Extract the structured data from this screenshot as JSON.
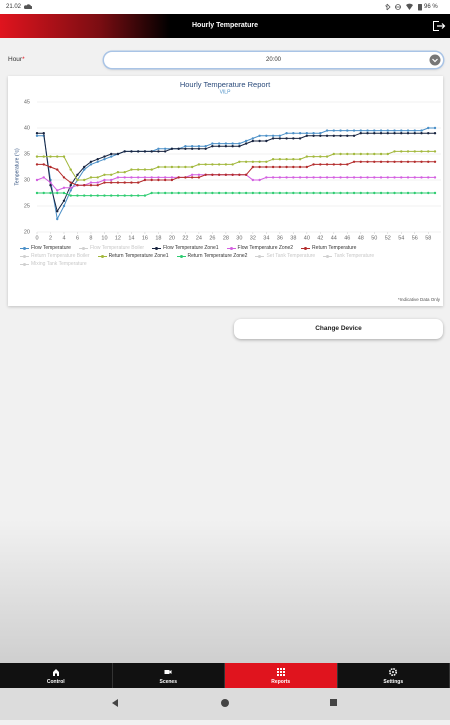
{
  "status_bar": {
    "time": "21.02",
    "battery": "96 %"
  },
  "header": {
    "title": "Hourly Temperature"
  },
  "form": {
    "label": "Hour",
    "required_mark": "*",
    "value": "20:00"
  },
  "chart_data": {
    "type": "line",
    "title": "Hourly Temperature Report",
    "subtitle": "VILP",
    "y_label": "Temperature (°c)",
    "x": [
      0,
      1,
      2,
      3,
      4,
      5,
      6,
      7,
      8,
      9,
      10,
      11,
      12,
      13,
      14,
      15,
      16,
      17,
      18,
      19,
      20,
      21,
      22,
      23,
      24,
      25,
      26,
      27,
      28,
      29,
      30,
      31,
      32,
      33,
      34,
      35,
      36,
      37,
      38,
      39,
      40,
      41,
      42,
      43,
      44,
      45,
      46,
      47,
      48,
      49,
      50,
      51,
      52,
      53,
      54,
      55,
      56,
      57,
      58,
      59
    ],
    "xlim": [
      0,
      59
    ],
    "xticks": [
      0,
      2,
      4,
      6,
      8,
      10,
      12,
      14,
      16,
      18,
      20,
      22,
      24,
      26,
      28,
      30,
      32,
      34,
      36,
      38,
      40,
      42,
      44,
      46,
      48,
      50,
      52,
      54,
      56,
      58
    ],
    "ylim": [
      20,
      45
    ],
    "yticks": [
      20,
      25,
      30,
      35,
      40,
      45
    ],
    "grid": true,
    "series": [
      {
        "name": "Flow Temperature",
        "color": "#4a8fc7",
        "values": [
          38.5,
          38.5,
          30,
          22.5,
          25,
          28,
          30,
          32,
          33,
          33.5,
          34,
          34.5,
          35,
          35.5,
          35.5,
          35.5,
          35.5,
          35.5,
          36,
          36,
          36,
          36,
          36.5,
          36.5,
          36.5,
          36.5,
          37,
          37,
          37,
          37,
          37,
          37.5,
          38,
          38.5,
          38.5,
          38.5,
          38.5,
          39,
          39,
          39,
          39,
          39,
          39,
          39.5,
          39.5,
          39.5,
          39.5,
          39.5,
          39.5,
          39.5,
          39.5,
          39.5,
          39.5,
          39.5,
          39.5,
          39.5,
          39.5,
          39.5,
          40,
          40
        ]
      },
      {
        "name": "Flow Temperature Boiler",
        "hidden": true
      },
      {
        "name": "Flow Temperature Zone1",
        "color": "#17233f",
        "values": [
          39,
          39,
          29,
          24,
          26,
          29,
          31,
          32.5,
          33.5,
          34,
          34.5,
          35,
          35,
          35.5,
          35.5,
          35.5,
          35.5,
          35.5,
          35.5,
          35.5,
          36,
          36,
          36,
          36,
          36,
          36,
          36.5,
          36.5,
          36.5,
          36.5,
          36.5,
          37,
          37.5,
          37.5,
          37.5,
          38,
          38,
          38,
          38,
          38,
          38.5,
          38.5,
          38.5,
          38.5,
          38.5,
          38.5,
          38.5,
          38.5,
          39,
          39,
          39,
          39,
          39,
          39,
          39,
          39,
          39,
          39,
          39,
          39
        ]
      },
      {
        "name": "Flow Temperature Zone2",
        "color": "#d35fe0",
        "values": [
          30,
          30.5,
          29.5,
          28,
          28.5,
          28.5,
          29,
          29,
          29.5,
          29.5,
          30,
          30,
          30.5,
          30.5,
          30.5,
          30.5,
          30.5,
          30.5,
          30.5,
          30.5,
          30.5,
          30.5,
          30.5,
          31,
          31,
          31,
          31,
          31,
          31,
          31,
          31,
          31,
          30,
          30,
          30.5,
          30.5,
          30.5,
          30.5,
          30.5,
          30.5,
          30.5,
          30.5,
          30.5,
          30.5,
          30.5,
          30.5,
          30.5,
          30.5,
          30.5,
          30.5,
          30.5,
          30.5,
          30.5,
          30.5,
          30.5,
          30.5,
          30.5,
          30.5,
          30.5,
          30.5
        ]
      },
      {
        "name": "Return Temperature",
        "color": "#b32b2b",
        "values": [
          33,
          33,
          32.5,
          32,
          30.5,
          29.5,
          29,
          29,
          29,
          29,
          29.5,
          29.5,
          29.5,
          29.5,
          29.5,
          29.5,
          30,
          30,
          30,
          30,
          30,
          30.5,
          30.5,
          30.5,
          30.5,
          31,
          31,
          31,
          31,
          31,
          31,
          31,
          32.5,
          32.5,
          32.5,
          32.5,
          32.5,
          32.5,
          32.5,
          32.5,
          32.5,
          33,
          33,
          33,
          33,
          33,
          33,
          33.5,
          33.5,
          33.5,
          33.5,
          33.5,
          33.5,
          33.5,
          33.5,
          33.5,
          33.5,
          33.5,
          33.5,
          33.5
        ]
      },
      {
        "name": "Return Temperature Boiler",
        "hidden": true
      },
      {
        "name": "Return Temperature Zone1",
        "color": "#a2b83c",
        "values": [
          34.5,
          34.5,
          34.5,
          34.5,
          34.5,
          32,
          30,
          30,
          30.5,
          30.5,
          31,
          31,
          31.5,
          31.5,
          32,
          32,
          32,
          32,
          32.5,
          32.5,
          32.5,
          32.5,
          32.5,
          32.5,
          33,
          33,
          33,
          33,
          33,
          33,
          33.5,
          33.5,
          33.5,
          33.5,
          33.5,
          34,
          34,
          34,
          34,
          34,
          34.5,
          34.5,
          34.5,
          34.5,
          35,
          35,
          35,
          35,
          35,
          35,
          35,
          35,
          35,
          35.5,
          35.5,
          35.5,
          35.5,
          35.5,
          35.5,
          35.5
        ]
      },
      {
        "name": "Return Temperature Zone2",
        "color": "#2ecc71",
        "values": [
          27.5,
          27.5,
          27.5,
          27.5,
          27.5,
          27,
          27,
          27,
          27,
          27,
          27,
          27,
          27,
          27,
          27,
          27,
          27,
          27.5,
          27.5,
          27.5,
          27.5,
          27.5,
          27.5,
          27.5,
          27.5,
          27.5,
          27.5,
          27.5,
          27.5,
          27.5,
          27.5,
          27.5,
          27.5,
          27.5,
          27.5,
          27.5,
          27.5,
          27.5,
          27.5,
          27.5,
          27.5,
          27.5,
          27.5,
          27.5,
          27.5,
          27.5,
          27.5,
          27.5,
          27.5,
          27.5,
          27.5,
          27.5,
          27.5,
          27.5,
          27.5,
          27.5,
          27.5,
          27.5,
          27.5,
          27.5
        ]
      },
      {
        "name": "Set Tank Temperature",
        "hidden": true
      },
      {
        "name": "Tank Temperature",
        "hidden": true
      },
      {
        "name": "Mixing Tank Temperature",
        "hidden": true
      }
    ]
  },
  "note": "*Indicative Data Only",
  "button": "Change Device",
  "nav": {
    "items": [
      "Control",
      "Scenes",
      "Reports",
      "Settings"
    ],
    "active": 2
  }
}
